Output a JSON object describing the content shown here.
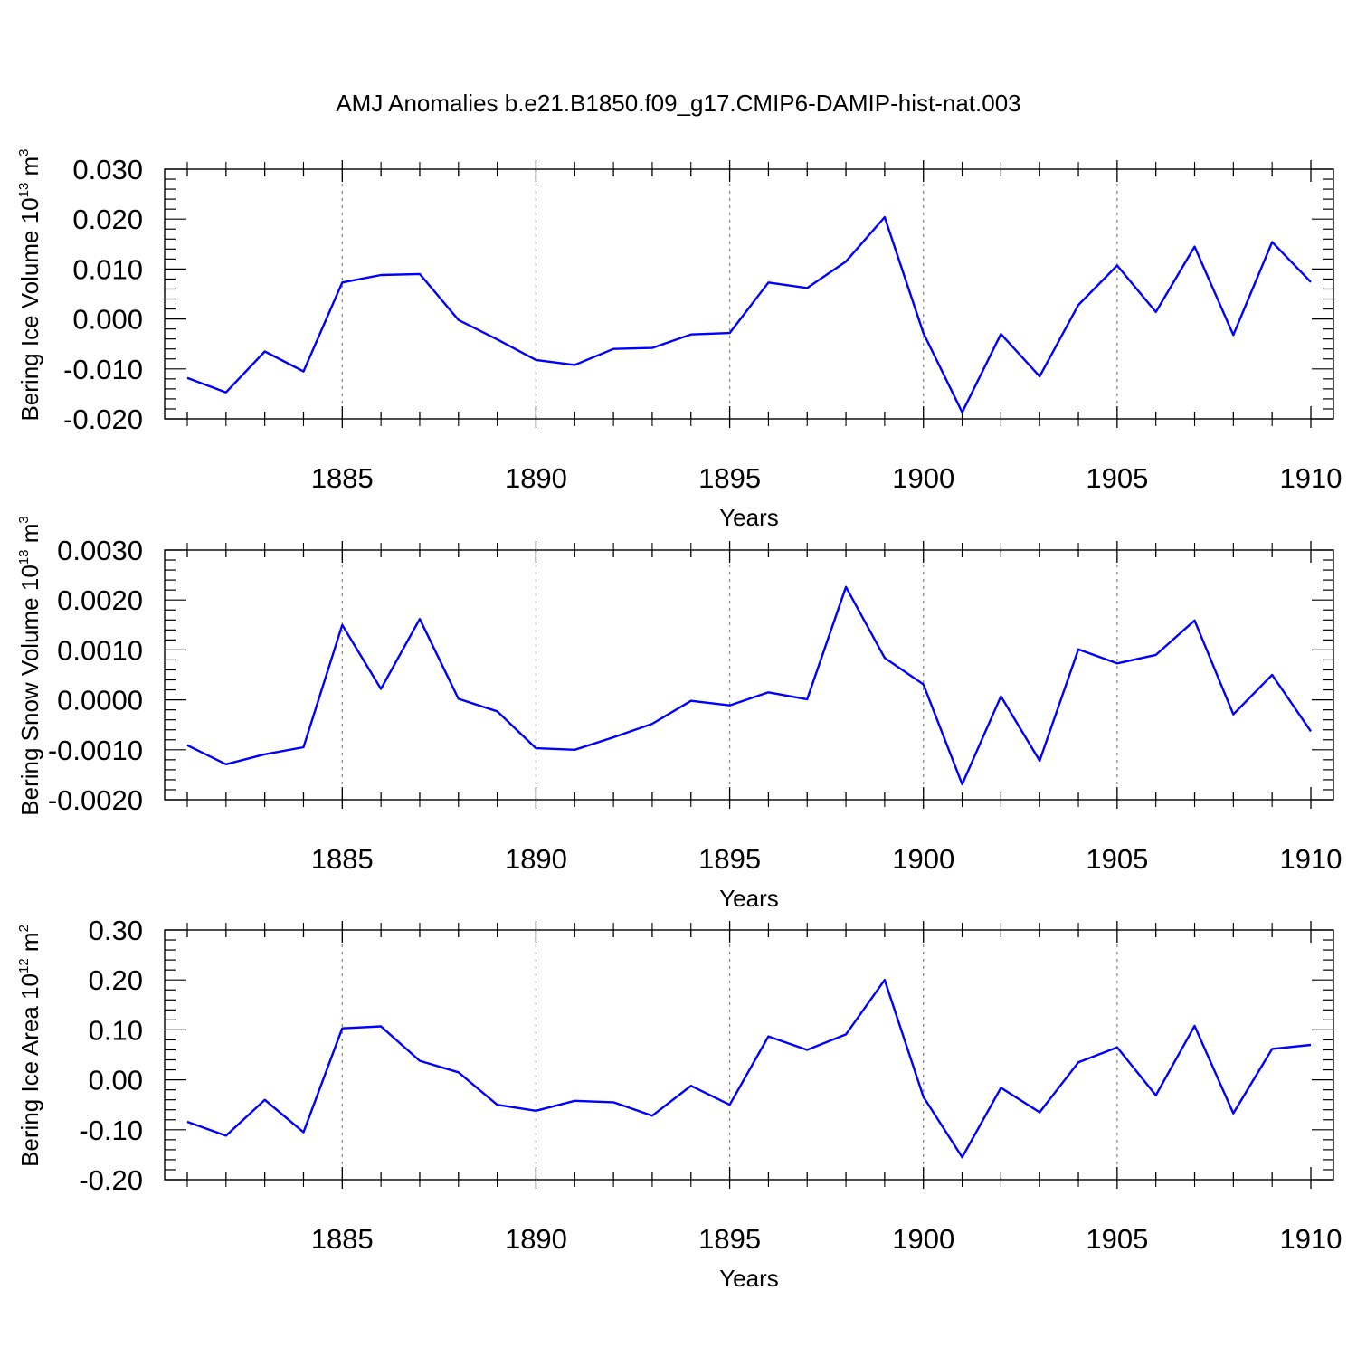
{
  "title": "AMJ Anomalies b.e21.B1850.f09_g17.CMIP6-DAMIP-hist-nat.003",
  "colors": {
    "line": "#0000ff",
    "axis": "#000000",
    "grid": "#888888"
  },
  "chart_data": [
    {
      "type": "line",
      "ylabel": {
        "text": "Bering Ice Volume 10",
        "sup": "13",
        "unit": " m",
        "unit_sup": "3"
      },
      "xlabel": "Years",
      "xlim": [
        1881,
        1910
      ],
      "ylim": [
        -0.02,
        0.03
      ],
      "yticks": [
        "0.030",
        "0.020",
        "0.010",
        "0.000",
        "-0.010",
        "-0.020"
      ],
      "ytick_values": [
        0.03,
        0.02,
        0.01,
        0.0,
        -0.01,
        -0.02
      ],
      "xticks": [
        "1885",
        "1890",
        "1895",
        "1900",
        "1905",
        "1910"
      ],
      "xtick_values": [
        1885,
        1890,
        1895,
        1900,
        1905,
        1910
      ],
      "grid": "dashed vertical lines at major x ticks",
      "x": [
        1881,
        1882,
        1883,
        1884,
        1885,
        1886,
        1887,
        1888,
        1889,
        1890,
        1891,
        1892,
        1893,
        1894,
        1895,
        1896,
        1897,
        1898,
        1899,
        1900,
        1901,
        1902,
        1903,
        1904,
        1905,
        1906,
        1907,
        1908,
        1909,
        1910
      ],
      "values": [
        -0.0118,
        -0.0147,
        -0.0065,
        -0.0105,
        0.0073,
        0.0088,
        0.009,
        -0.0002,
        -0.0041,
        -0.0082,
        -0.0092,
        -0.006,
        -0.0058,
        -0.0031,
        -0.0028,
        0.0073,
        0.0062,
        0.0115,
        0.0204,
        -0.0028,
        -0.0187,
        -0.003,
        -0.0115,
        0.0028,
        0.0107,
        0.0014,
        0.0145,
        -0.0032,
        0.0154,
        0.0074
      ]
    },
    {
      "type": "line",
      "ylabel": {
        "text": "Bering Snow Volume 10",
        "sup": "13",
        "unit": " m",
        "unit_sup": "3"
      },
      "xlabel": "Years",
      "xlim": [
        1881,
        1910
      ],
      "ylim": [
        -0.002,
        0.003
      ],
      "yticks": [
        "0.0030",
        "0.0020",
        "0.0010",
        "0.0000",
        "-0.0010",
        "-0.0020"
      ],
      "ytick_values": [
        0.003,
        0.002,
        0.001,
        0.0,
        -0.001,
        -0.002
      ],
      "xticks": [
        "1885",
        "1890",
        "1895",
        "1900",
        "1905",
        "1910"
      ],
      "xtick_values": [
        1885,
        1890,
        1895,
        1900,
        1905,
        1910
      ],
      "grid": "dashed vertical lines at major x ticks",
      "x": [
        1881,
        1882,
        1883,
        1884,
        1885,
        1886,
        1887,
        1888,
        1889,
        1890,
        1891,
        1892,
        1893,
        1894,
        1895,
        1896,
        1897,
        1898,
        1899,
        1900,
        1901,
        1902,
        1903,
        1904,
        1905,
        1906,
        1907,
        1908,
        1909,
        1910
      ],
      "values": [
        -0.00091,
        -0.00129,
        -0.00109,
        -0.00095,
        0.0015,
        0.00022,
        0.00162,
        2e-05,
        -0.00023,
        -0.00097,
        -0.001,
        -0.00075,
        -0.00048,
        -2e-05,
        -0.00011,
        0.00015,
        1e-05,
        0.00226,
        0.00084,
        0.00031,
        -0.00169,
        7e-05,
        -0.00122,
        0.00101,
        0.00073,
        0.0009,
        0.00159,
        -0.00029,
        0.0005,
        -0.00063
      ]
    },
    {
      "type": "line",
      "ylabel": {
        "text": "Bering Ice Area 10",
        "sup": "12",
        "unit": " m",
        "unit_sup": "2"
      },
      "xlabel": "Years",
      "xlim": [
        1881,
        1910
      ],
      "ylim": [
        -0.2,
        0.3
      ],
      "yticks": [
        "0.30",
        "0.20",
        "0.10",
        "0.00",
        "-0.10",
        "-0.20"
      ],
      "ytick_values": [
        0.3,
        0.2,
        0.1,
        0.0,
        -0.1,
        -0.2
      ],
      "xticks": [
        "1885",
        "1890",
        "1895",
        "1900",
        "1905",
        "1910"
      ],
      "xtick_values": [
        1885,
        1890,
        1895,
        1900,
        1905,
        1910
      ],
      "grid": "dashed vertical lines at major x ticks",
      "x": [
        1881,
        1882,
        1883,
        1884,
        1885,
        1886,
        1887,
        1888,
        1889,
        1890,
        1891,
        1892,
        1893,
        1894,
        1895,
        1896,
        1897,
        1898,
        1899,
        1900,
        1901,
        1902,
        1903,
        1904,
        1905,
        1906,
        1907,
        1908,
        1909,
        1910
      ],
      "values": [
        -0.084,
        -0.112,
        -0.04,
        -0.105,
        0.103,
        0.107,
        0.038,
        0.015,
        -0.05,
        -0.062,
        -0.042,
        -0.045,
        -0.072,
        -0.012,
        -0.05,
        0.087,
        0.06,
        0.091,
        0.2,
        -0.034,
        -0.155,
        -0.016,
        -0.065,
        0.035,
        0.065,
        -0.031,
        0.108,
        -0.067,
        0.062,
        0.07
      ]
    }
  ]
}
